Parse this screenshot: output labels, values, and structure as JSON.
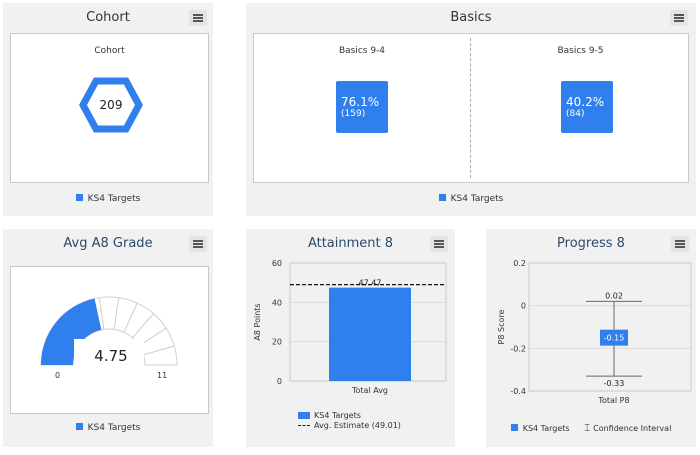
{
  "cohort": {
    "title": "Cohort",
    "inner_title": "Cohort",
    "value": "209",
    "legend": "KS4 Targets"
  },
  "basics": {
    "title": "Basics",
    "left": {
      "label": "Basics 9-4",
      "pct": "76.1%",
      "count": "(159)"
    },
    "right": {
      "label": "Basics 9-5",
      "pct": "40.2%",
      "count": "(84)"
    },
    "legend": "KS4 Targets"
  },
  "a8grade": {
    "title": "Avg A8 Grade",
    "value": "4.75",
    "min": "0",
    "max": "11",
    "fraction": 0.4318,
    "legend": "KS4 Targets"
  },
  "attainment8": {
    "title": "Attainment 8",
    "ylabel": "A8 Points",
    "legend_series": "KS4 Targets",
    "legend_avg": "Avg. Estimate (49.01)",
    "chart_data": {
      "type": "bar",
      "categories": [
        "Total Avg"
      ],
      "values": [
        47.47
      ],
      "value_labels": [
        "47.47"
      ],
      "reference_line": 49.01,
      "ylim": [
        0,
        60
      ],
      "yticks": [
        "0",
        "20",
        "40",
        "60"
      ],
      "ytick_values": [
        0,
        20,
        40,
        60
      ],
      "ylabel": "A8 Points"
    }
  },
  "progress8": {
    "title": "Progress 8",
    "ylabel": "P8 Score",
    "legend_series": "KS4 Targets",
    "legend_ci": "Confidence Interval",
    "chart_data": {
      "type": "scatter",
      "categories": [
        "Total P8"
      ],
      "values": [
        -0.15
      ],
      "value_labels": [
        "-0.15"
      ],
      "ci_upper": 0.02,
      "ci_upper_label": "0.02",
      "ci_lower": -0.33,
      "ci_lower_label": "-0.33",
      "ylim": [
        -0.4,
        0.2
      ],
      "yticks": [
        "0.2",
        "0",
        "-0.2",
        "-0.4"
      ],
      "ytick_values": [
        0.2,
        0,
        -0.2,
        -0.4
      ],
      "ylabel": "P8 Score"
    }
  },
  "colors": {
    "accent": "#2f80ed",
    "panel_bg": "#f1f1f1",
    "title_blue": "#2d4a6b"
  },
  "icons": {
    "menu": "hamburger-menu-icon",
    "cohort_shape": "hexagon-icon"
  }
}
